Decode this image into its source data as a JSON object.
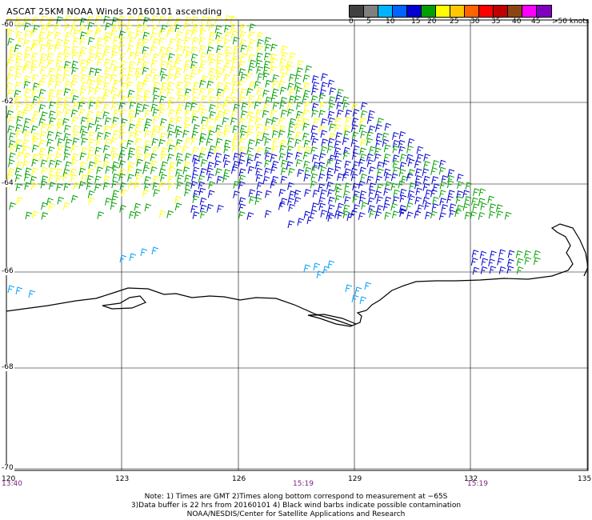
{
  "title": "ASCAT 25KM NOAA Winds 20160101 ascending",
  "legend": {
    "swatches": [
      {
        "color": "#404040",
        "name": "0-5 knots"
      },
      {
        "color": "#808080",
        "name": "0-5 knots"
      },
      {
        "color": "#00b4ff",
        "name": "5-10 knots"
      },
      {
        "color": "#0064ff",
        "name": "10-15 knots"
      },
      {
        "color": "#0000d0",
        "name": "10-15 knots"
      },
      {
        "color": "#00a000",
        "name": "15-20 knots"
      },
      {
        "color": "#ffff00",
        "name": "20-25 knots"
      },
      {
        "color": "#ffc800",
        "name": "25-30 knots"
      },
      {
        "color": "#ff6400",
        "name": "25-30 knots"
      },
      {
        "color": "#ff0000",
        "name": "30-35 knots"
      },
      {
        "color": "#c00000",
        "name": "35-40 knots"
      },
      {
        "color": "#8b4513",
        "name": "40-45 knots"
      },
      {
        "color": "#ff00ff",
        "name": "45-50 knots"
      },
      {
        "color": "#8000c0",
        "name": ">50 knots"
      }
    ],
    "labels": [
      "0",
      "5",
      "10",
      "15",
      "20",
      "25",
      "30",
      "35",
      "40",
      "45",
      ">50 knots"
    ]
  },
  "axes": {
    "lat_labels": [
      "-60",
      "-62",
      "-64",
      "-66",
      "-68",
      "-70"
    ],
    "lon_labels": [
      "120",
      "123",
      "126",
      "129",
      "132",
      "135"
    ],
    "time_labels": [
      "13:40",
      "15:19",
      "15:19"
    ]
  },
  "notes": [
    "Note: 1) Times are GMT 2)Times along bottom correspond to measurement at −65S",
    "3)Data buffer is 22 hrs from 20160101 4) Black wind barbs indicate possible contamination",
    "NOAA/NESDIS/Center for Satellite Applications and Research"
  ],
  "colors": {
    "yellow": "#ffff00",
    "green": "#00a000",
    "blue": "#0000d0",
    "lightblue": "#00a0ff",
    "coast": "#000000",
    "grid": "#000000"
  }
}
